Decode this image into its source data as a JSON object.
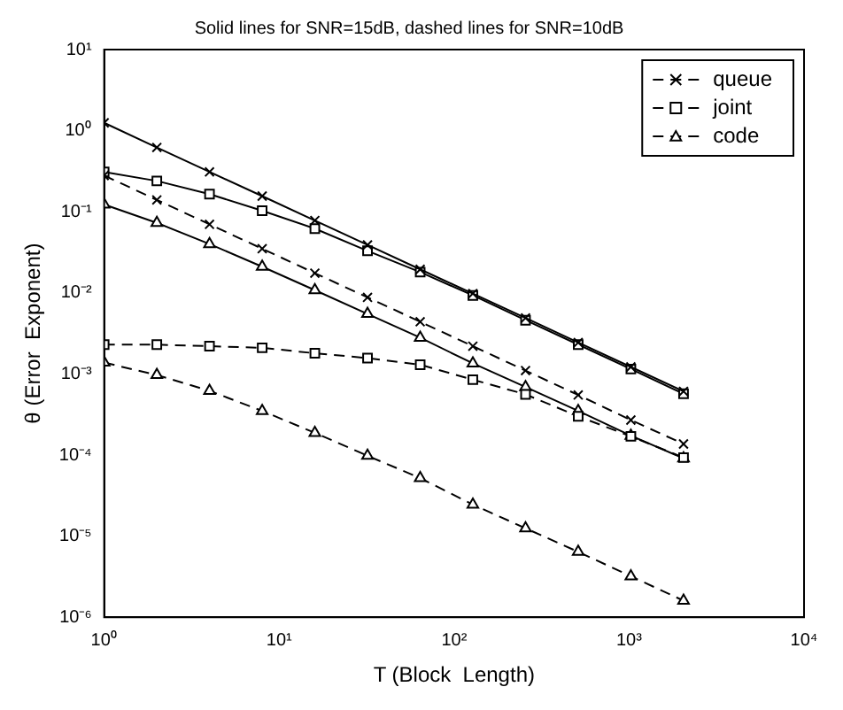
{
  "chart_data": {
    "type": "line",
    "title": "Solid lines for SNR=15dB, dashed lines for SNR=10dB",
    "xlabel": "T (Block  Length)",
    "ylabel": "θ (Error  Exponent)",
    "log": "xy",
    "grid": false,
    "legend": "top right",
    "x": [
      1,
      2,
      4,
      8,
      16,
      32,
      64,
      128,
      256,
      512,
      1024,
      2048
    ],
    "xlim": [
      1,
      10000
    ],
    "xticks": [
      {
        "value": 1,
        "label": "10⁰"
      },
      {
        "value": 10,
        "label": "10¹"
      },
      {
        "value": 100,
        "label": "10²"
      },
      {
        "value": 1000,
        "label": "10³"
      },
      {
        "value": 10000,
        "label": "10⁴"
      }
    ],
    "ylim": [
      1e-06,
      10
    ],
    "yticks": [
      {
        "value": 1e-06,
        "label": "10⁻⁶"
      },
      {
        "value": 1e-05,
        "label": "10⁻⁵"
      },
      {
        "value": 0.0001,
        "label": "10⁻⁴"
      },
      {
        "value": 0.001,
        "label": "10⁻³"
      },
      {
        "value": 0.01,
        "label": "10⁻²"
      },
      {
        "value": 0.1,
        "label": "10⁻¹"
      },
      {
        "value": 1,
        "label": "10⁰"
      },
      {
        "value": 10,
        "label": "10¹"
      }
    ],
    "series": [
      {
        "name": "queue",
        "color": "#000000",
        "line_style": "dashed",
        "marker": "cross",
        "values": [
          0.28,
          0.14,
          0.07,
          0.035,
          0.0175,
          0.0088,
          0.0044,
          0.0022,
          0.0011,
          0.00055,
          0.00027,
          0.000137
        ]
      },
      {
        "name": "joint",
        "color": "#000000",
        "line_style": "dashed",
        "marker": "square",
        "values": [
          0.0023,
          0.0023,
          0.0022,
          0.0021,
          0.0018,
          0.00157,
          0.0013,
          0.00085,
          0.00056,
          0.0003,
          0.00017,
          9.3e-05
        ]
      },
      {
        "name": "code",
        "color": "#000000",
        "line_style": "dashed",
        "marker": "triangle",
        "values": [
          0.00138,
          0.00097,
          0.00062,
          0.00035,
          0.000188,
          9.8e-05,
          5.2e-05,
          2.45e-05,
          1.25e-05,
          6.4e-06,
          3.2e-06,
          1.6e-06
        ]
      },
      {
        "color": "#000000",
        "line_style": "solid",
        "marker": "cross",
        "values": [
          1.25,
          0.62,
          0.31,
          0.156,
          0.078,
          0.039,
          0.0195,
          0.0098,
          0.0049,
          0.00244,
          0.00122,
          0.00061
        ]
      },
      {
        "color": "#000000",
        "line_style": "solid",
        "marker": "square",
        "values": [
          0.31,
          0.24,
          0.165,
          0.103,
          0.062,
          0.033,
          0.018,
          0.0093,
          0.0046,
          0.0023,
          0.00115,
          0.00057
        ]
      },
      {
        "color": "#000000",
        "line_style": "solid",
        "marker": "triangle",
        "values": [
          0.123,
          0.073,
          0.04,
          0.021,
          0.0108,
          0.0055,
          0.0028,
          0.00135,
          0.00069,
          0.00035,
          0.000173,
          9.1e-05
        ]
      }
    ]
  }
}
